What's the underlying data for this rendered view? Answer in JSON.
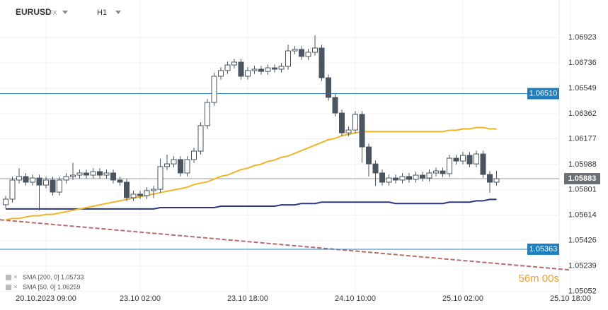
{
  "header": {
    "symbol": "EURUSD",
    "market": "FX",
    "timeframe": "H1"
  },
  "chart_data": {
    "type": "candlestick",
    "categories": [
      null,
      null,
      null,
      null,
      null,
      null,
      "20.10.2023  09:00",
      null,
      null,
      null,
      null,
      null,
      null,
      null,
      null,
      null,
      null,
      null,
      null,
      null,
      "23.10  02:00",
      null,
      null,
      null,
      null,
      null,
      null,
      null,
      null,
      null,
      null,
      null,
      null,
      null,
      null,
      null,
      "23.10  18:00",
      null,
      null,
      null,
      null,
      null,
      null,
      null,
      null,
      null,
      null,
      null,
      null,
      null,
      null,
      null,
      "24.10  10:00",
      null,
      null,
      null,
      null,
      null,
      null,
      null,
      null,
      null,
      null,
      null,
      null,
      null,
      null,
      null,
      "25.10  02:00",
      null,
      null,
      null,
      null,
      null,
      null,
      null,
      null,
      null,
      null,
      null,
      null,
      null,
      null,
      null,
      "25.10  18:00"
    ],
    "open": [
      1.05691,
      1.05732,
      1.05873,
      1.05899,
      1.05857,
      1.05888,
      1.05836,
      1.05873,
      1.05784,
      1.05873,
      1.05899,
      1.05909,
      1.05925,
      1.05909,
      1.05935,
      1.05909,
      1.05925,
      1.05873,
      1.05857,
      1.05743,
      1.05769,
      1.05758,
      1.05795,
      1.05805,
      1.05972,
      1.05992,
      1.06024,
      1.05925,
      1.06024,
      1.06086,
      1.06274,
      1.06445,
      1.06638,
      1.0668,
      1.06721,
      1.06742,
      1.06638,
      1.0668,
      1.0669,
      1.06674,
      1.067,
      1.0669,
      1.06711,
      1.06825,
      1.06836,
      1.06784,
      1.06815,
      1.06846,
      1.06627,
      1.06482,
      1.06367,
      1.06221,
      1.06242,
      1.06357,
      1.06117,
      1.05992,
      1.05925,
      1.05857,
      1.05888,
      1.05873,
      1.05899,
      1.05878,
      1.05909,
      1.05888,
      1.05925,
      1.0594,
      1.0592,
      1.06034,
      1.06013,
      1.06055,
      1.05992,
      1.06065,
      1.05914,
      1.05857,
      null,
      null,
      null,
      null,
      null,
      null,
      null,
      null,
      null,
      null,
      null
    ],
    "high": [
      1.05757,
      1.05898,
      1.0596,
      1.05924,
      1.05913,
      1.05913,
      1.05898,
      1.05898,
      1.05898,
      1.05924,
      1.06,
      1.0595,
      1.0595,
      1.0596,
      1.0596,
      1.0595,
      1.0595,
      1.05898,
      1.05882,
      1.05794,
      1.05794,
      1.0582,
      1.0583,
      1.0603,
      1.0606,
      1.06049,
      1.06049,
      1.06049,
      1.06111,
      1.06299,
      1.0647,
      1.06663,
      1.06705,
      1.06746,
      1.06767,
      1.06767,
      1.06705,
      1.06715,
      1.06715,
      1.06725,
      1.06725,
      1.06736,
      1.0687,
      1.06861,
      1.06861,
      1.0684,
      1.0694,
      1.06871,
      1.06652,
      1.06507,
      1.06392,
      1.06267,
      1.06382,
      1.06382,
      1.06142,
      1.06017,
      1.0595,
      1.05913,
      1.05913,
      1.05924,
      1.05924,
      1.05934,
      1.05934,
      1.0595,
      1.05965,
      1.05965,
      1.06059,
      1.06059,
      1.0608,
      1.0608,
      1.0609,
      1.0609,
      1.05939,
      1.0594,
      null,
      null,
      null,
      null,
      null,
      null,
      null,
      null,
      null,
      null,
      null
    ],
    "low": [
      1.05666,
      1.05707,
      1.05848,
      1.05832,
      1.05832,
      1.05649,
      1.05811,
      1.05759,
      1.05759,
      1.05848,
      1.05874,
      1.05884,
      1.05884,
      1.05884,
      1.05884,
      1.05884,
      1.05848,
      1.05832,
      1.05718,
      1.05718,
      1.05733,
      1.05733,
      1.0574,
      1.0578,
      1.05947,
      1.05967,
      1.059,
      1.059,
      1.05999,
      1.06061,
      1.06249,
      1.0642,
      1.06613,
      1.06655,
      1.06696,
      1.06613,
      1.06613,
      1.06655,
      1.06649,
      1.06649,
      1.06665,
      1.06665,
      1.06686,
      1.068,
      1.06759,
      1.06759,
      1.0679,
      1.06602,
      1.06457,
      1.06342,
      1.06196,
      1.06196,
      1.06217,
      1.06,
      1.059,
      1.0583,
      1.05832,
      1.05832,
      1.05848,
      1.05848,
      1.05853,
      1.05853,
      1.05863,
      1.05863,
      1.059,
      1.05895,
      1.05895,
      1.05988,
      1.05988,
      1.05967,
      1.05967,
      1.05889,
      1.0578,
      1.05832,
      null,
      null,
      null,
      null,
      null,
      null,
      null,
      null,
      null,
      null,
      null
    ],
    "close": [
      1.05732,
      1.05873,
      1.05899,
      1.05857,
      1.05888,
      1.05836,
      1.05873,
      1.05784,
      1.05873,
      1.05899,
      1.05909,
      1.05925,
      1.05909,
      1.05935,
      1.05909,
      1.05925,
      1.05873,
      1.05857,
      1.05743,
      1.05769,
      1.05758,
      1.05795,
      1.05805,
      1.05972,
      1.05992,
      1.06024,
      1.05925,
      1.06024,
      1.06086,
      1.06274,
      1.06445,
      1.06638,
      1.0668,
      1.06721,
      1.06742,
      1.06638,
      1.0668,
      1.0669,
      1.06674,
      1.067,
      1.0669,
      1.06711,
      1.06825,
      1.06836,
      1.06784,
      1.06815,
      1.06846,
      1.06627,
      1.06482,
      1.06367,
      1.06221,
      1.06242,
      1.06357,
      1.06117,
      1.05992,
      1.05925,
      1.05857,
      1.05888,
      1.05873,
      1.05899,
      1.05878,
      1.05909,
      1.05888,
      1.05925,
      1.0594,
      1.0592,
      1.06034,
      1.06013,
      1.06055,
      1.05992,
      1.06065,
      1.05914,
      1.05857,
      1.05883,
      null,
      null,
      null,
      null,
      null,
      null,
      null,
      null,
      null,
      null,
      null
    ],
    "up_color": "#ffffff",
    "down_color": "#4b5560",
    "edge_color": "#4b5560",
    "series": [
      {
        "name": "SMA [200, 0] 1.05733",
        "color": "#2b3580",
        "values": [
          1.0566,
          1.0566,
          1.0566,
          1.0566,
          1.0566,
          1.0566,
          1.0566,
          1.0566,
          1.0566,
          1.0566,
          1.0566,
          1.0566,
          1.0566,
          1.0566,
          1.0566,
          1.0566,
          1.0566,
          1.0566,
          1.0566,
          1.0566,
          1.0566,
          1.0566,
          1.0566,
          1.0567,
          1.0567,
          1.0567,
          1.0567,
          1.0567,
          1.0567,
          1.0567,
          1.0567,
          1.0567,
          1.0568,
          1.0568,
          1.0568,
          1.0568,
          1.0568,
          1.0568,
          1.0568,
          1.0568,
          1.0568,
          1.0569,
          1.0569,
          1.0569,
          1.057,
          1.057,
          1.057,
          1.0571,
          1.0571,
          1.0571,
          1.0571,
          1.0571,
          1.0571,
          1.0571,
          1.0571,
          1.0571,
          1.0571,
          1.0571,
          1.057,
          1.057,
          1.057,
          1.057,
          1.057,
          1.057,
          1.057,
          1.057,
          1.0571,
          1.0571,
          1.0571,
          1.0571,
          1.0572,
          1.0572,
          1.0573,
          1.0573,
          null,
          null,
          null,
          null,
          null,
          null,
          null,
          null,
          null,
          null,
          null
        ]
      },
      {
        "name": "SMA [50, 0] 1.06259",
        "color": "#f0b429",
        "values": [
          1.0558,
          1.0559,
          1.0559,
          1.056,
          1.0561,
          1.0561,
          1.0562,
          1.0562,
          1.0563,
          1.0564,
          1.0565,
          1.0566,
          1.0567,
          1.0568,
          1.0569,
          1.057,
          1.0571,
          1.0572,
          1.0573,
          1.0574,
          1.0575,
          1.0576,
          1.0577,
          1.0578,
          1.0579,
          1.058,
          1.0581,
          1.0582,
          1.0584,
          1.0585,
          1.0586,
          1.0588,
          1.059,
          1.0591,
          1.0593,
          1.0595,
          1.0596,
          1.0598,
          1.0599,
          1.0601,
          1.0602,
          1.0604,
          1.0605,
          1.0607,
          1.0609,
          1.0611,
          1.0613,
          1.0615,
          1.0617,
          1.0618,
          1.062,
          1.0621,
          1.0622,
          1.0623,
          1.0623,
          1.0623,
          1.0623,
          1.0623,
          1.0623,
          1.0623,
          1.0623,
          1.0623,
          1.0623,
          1.0623,
          1.0623,
          1.0623,
          1.0624,
          1.0624,
          1.0625,
          1.0625,
          1.0626,
          1.0626,
          1.0625,
          1.0625,
          null,
          null,
          null,
          null,
          null,
          null,
          null,
          null,
          null,
          null,
          null
        ]
      }
    ],
    "levels": [
      {
        "value": 1.0651,
        "label": "1.06510",
        "color": "#1e7fc0"
      },
      {
        "value": 1.05363,
        "label": "1.05363",
        "color": "#1e7fc0"
      }
    ],
    "current_price": {
      "value": 1.05883,
      "label": "1.05883",
      "color": "#6b6f73"
    },
    "trendline": {
      "values": [
        1.0558,
        1.0521
      ],
      "color": "#b86b6b"
    },
    "countdown": "56m 00s",
    "ylim": [
      1.0504,
      1.072
    ],
    "yticks": [
      1.05052,
      1.05239,
      1.05426,
      1.05614,
      1.05801,
      1.05988,
      1.06177,
      1.06362,
      1.06549,
      1.06736,
      1.06923
    ],
    "grid": true
  }
}
